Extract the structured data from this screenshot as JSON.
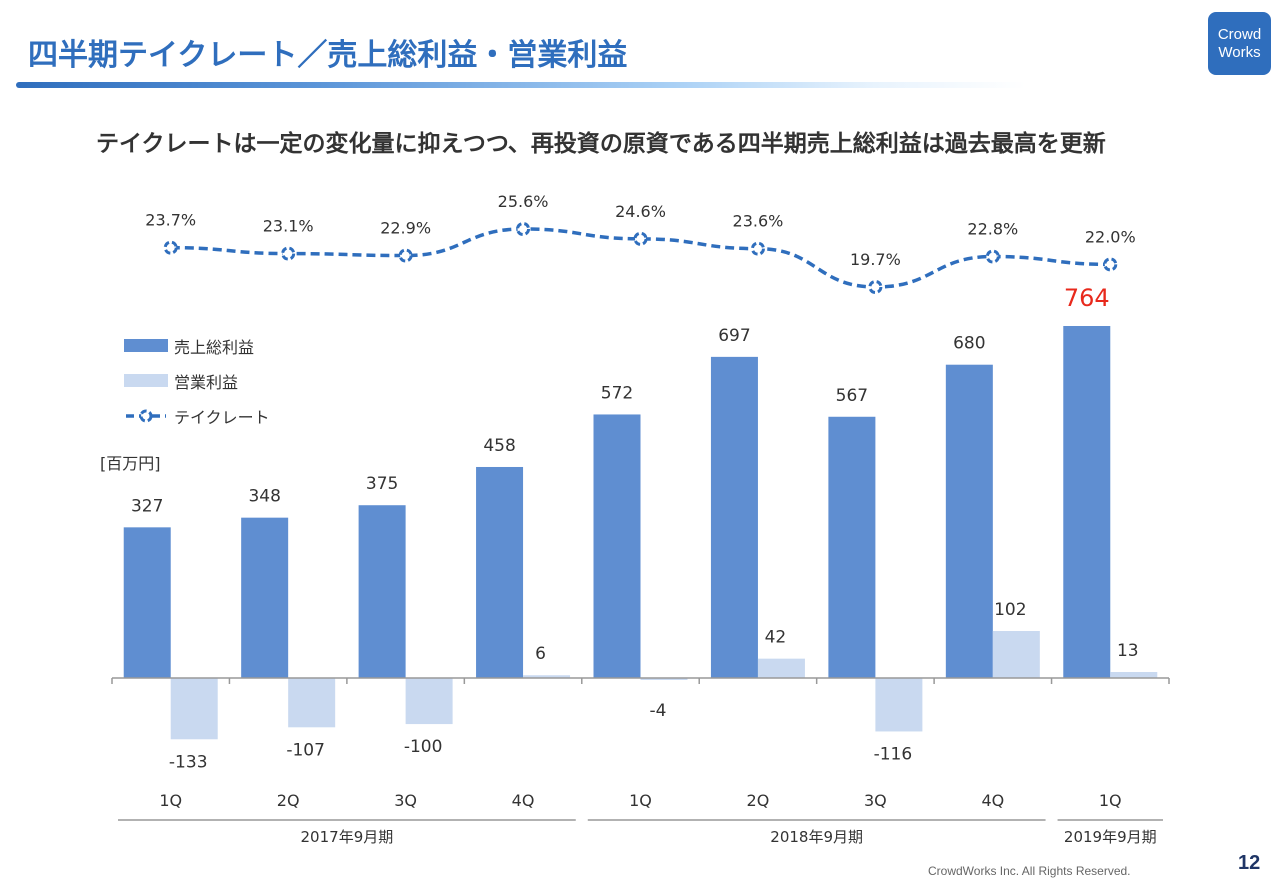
{
  "header": {
    "title": "四半期テイクレート／売上総利益・営業利益",
    "logo_line1": "Crowd",
    "logo_line2": "Works"
  },
  "subtitle": "テイクレートは一定の変化量に抑えつつ、再投資の原資である四半期売上総利益は過去最高を更新",
  "legend": {
    "gross_profit": "売上総利益",
    "operating_profit": "営業利益",
    "take_rate": "テイクレート"
  },
  "unit_label": "[百万円]",
  "colors": {
    "accent": "#2f6ebd",
    "gross_profit": "#5f8ed1",
    "operating_profit": "#c9d9f0",
    "take_rate": "#2f6ebd",
    "highlight": "#e8291c"
  },
  "chart_data": {
    "type": "bar",
    "title": "四半期テイクレート／売上総利益・営業利益",
    "ylabel": "[百万円]",
    "categories": [
      "1Q",
      "2Q",
      "3Q",
      "4Q",
      "1Q",
      "2Q",
      "3Q",
      "4Q",
      "1Q"
    ],
    "period_groups": [
      {
        "label": "2017年9月期",
        "start": 0,
        "end": 3
      },
      {
        "label": "2018年9月期",
        "start": 4,
        "end": 7
      },
      {
        "label": "2019年9月期",
        "start": 8,
        "end": 8
      }
    ],
    "series": [
      {
        "name": "売上総利益",
        "type": "bar",
        "values": [
          327,
          348,
          375,
          458,
          572,
          697,
          567,
          680,
          764
        ],
        "labels": [
          "327",
          "348",
          "375",
          "458",
          "572",
          "697",
          "567",
          "680",
          "764"
        ]
      },
      {
        "name": "営業利益",
        "type": "bar",
        "values": [
          -133,
          -107,
          -100,
          6,
          -4,
          42,
          -116,
          102,
          13
        ],
        "labels": [
          "-133",
          "-107",
          "-100",
          "6",
          "-4",
          "42",
          "-116",
          "102",
          "13"
        ]
      },
      {
        "name": "テイクレート",
        "type": "line",
        "unit": "%",
        "values": [
          23.7,
          23.1,
          22.9,
          25.6,
          24.6,
          23.6,
          19.7,
          22.8,
          22.0
        ],
        "labels": [
          "23.7%",
          "23.1%",
          "22.9%",
          "25.6%",
          "24.6%",
          "23.6%",
          "19.7%",
          "22.8%",
          "22.0%"
        ]
      }
    ],
    "highlight_index": 8,
    "ylim": [
      -150,
      800
    ],
    "grid": false,
    "legend_position": "top-left"
  },
  "footer": {
    "copyright": "CrowdWorks Inc. All Rights Reserved.",
    "page_number": "12"
  }
}
